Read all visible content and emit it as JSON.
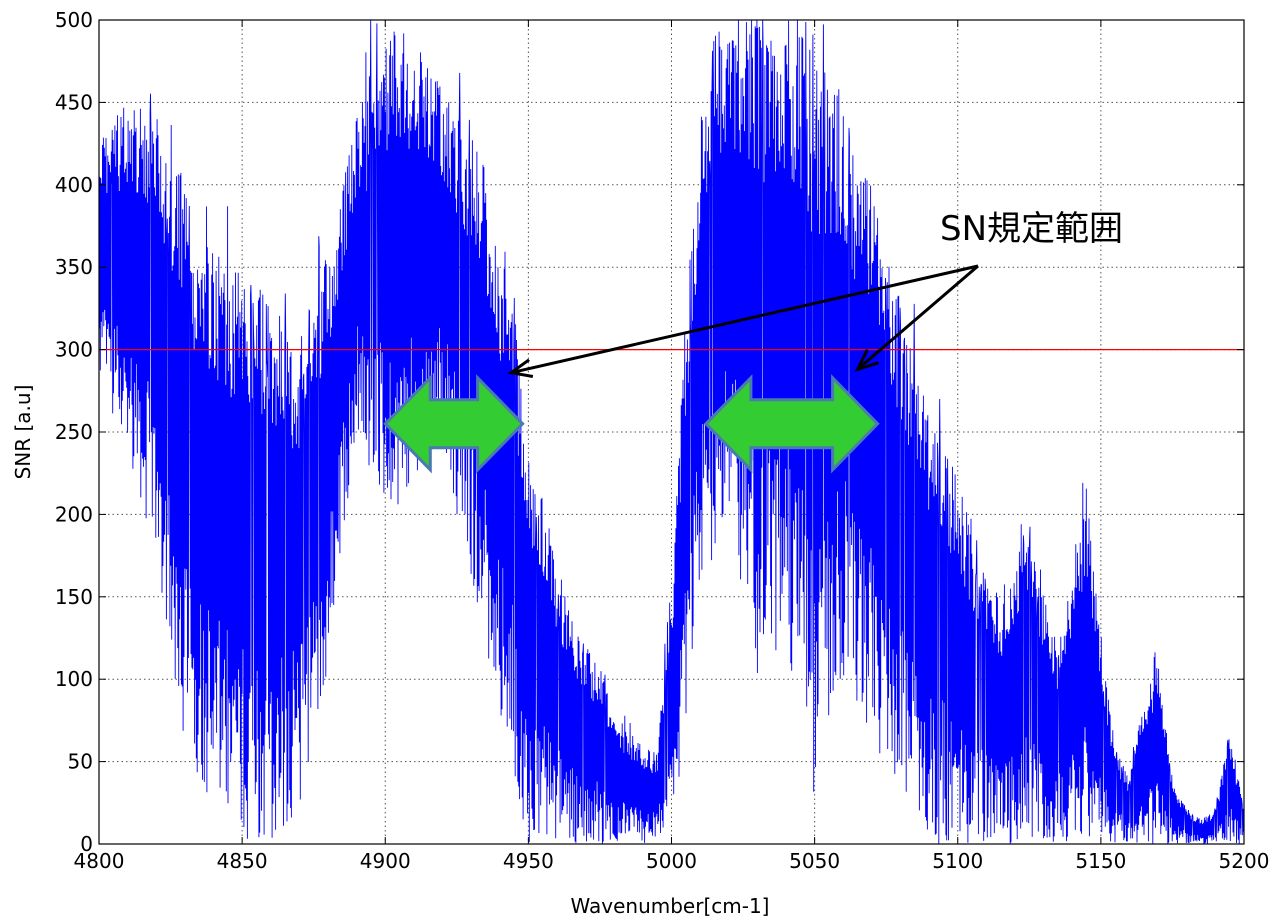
{
  "chart_data": {
    "type": "line",
    "xlabel": "Wavenumber[cm-1]",
    "ylabel": "SNR [a.u]",
    "xlim": [
      4800,
      5200
    ],
    "ylim": [
      0,
      500
    ],
    "x_ticks": [
      4800,
      4850,
      4900,
      4950,
      5000,
      5050,
      5100,
      5150,
      5200
    ],
    "y_ticks": [
      0,
      50,
      100,
      150,
      200,
      250,
      300,
      350,
      400,
      450,
      500
    ],
    "grid": true,
    "series": [
      {
        "color": "#0000ff",
        "envelope": [
          [
            4800,
            430
          ],
          [
            4805,
            440
          ],
          [
            4810,
            450
          ],
          [
            4815,
            455
          ],
          [
            4820,
            445
          ],
          [
            4825,
            430
          ],
          [
            4830,
            400
          ],
          [
            4835,
            370
          ],
          [
            4840,
            360
          ],
          [
            4845,
            355
          ],
          [
            4850,
            350
          ],
          [
            4855,
            340
          ],
          [
            4860,
            330
          ],
          [
            4865,
            320
          ],
          [
            4870,
            310
          ],
          [
            4875,
            330
          ],
          [
            4880,
            360
          ],
          [
            4885,
            400
          ],
          [
            4890,
            440
          ],
          [
            4895,
            470
          ],
          [
            4900,
            490
          ],
          [
            4905,
            495
          ],
          [
            4910,
            490
          ],
          [
            4915,
            470
          ],
          [
            4920,
            460
          ],
          [
            4925,
            440
          ],
          [
            4930,
            430
          ],
          [
            4935,
            410
          ],
          [
            4940,
            360
          ],
          [
            4945,
            330
          ],
          [
            4950,
            240
          ],
          [
            4955,
            210
          ],
          [
            4960,
            170
          ],
          [
            4965,
            140
          ],
          [
            4970,
            120
          ],
          [
            4975,
            110
          ],
          [
            4980,
            80
          ],
          [
            4985,
            70
          ],
          [
            4990,
            60
          ],
          [
            4995,
            55
          ],
          [
            5000,
            160
          ],
          [
            5005,
            320
          ],
          [
            5010,
            440
          ],
          [
            5015,
            490
          ],
          [
            5020,
            500
          ],
          [
            5025,
            500
          ],
          [
            5030,
            500
          ],
          [
            5035,
            500
          ],
          [
            5040,
            500
          ],
          [
            5045,
            500
          ],
          [
            5050,
            480
          ],
          [
            5055,
            470
          ],
          [
            5060,
            460
          ],
          [
            5065,
            420
          ],
          [
            5070,
            400
          ],
          [
            5075,
            360
          ],
          [
            5080,
            330
          ],
          [
            5085,
            300
          ],
          [
            5090,
            260
          ],
          [
            5095,
            250
          ],
          [
            5100,
            220
          ],
          [
            5105,
            190
          ],
          [
            5110,
            160
          ],
          [
            5115,
            150
          ],
          [
            5120,
            180
          ],
          [
            5125,
            200
          ],
          [
            5130,
            150
          ],
          [
            5135,
            120
          ],
          [
            5140,
            170
          ],
          [
            5145,
            220
          ],
          [
            5150,
            120
          ],
          [
            5155,
            60
          ],
          [
            5160,
            40
          ],
          [
            5165,
            90
          ],
          [
            5170,
            110
          ],
          [
            5175,
            40
          ],
          [
            5180,
            20
          ],
          [
            5185,
            15
          ],
          [
            5190,
            20
          ],
          [
            5195,
            70
          ],
          [
            5200,
            20
          ]
        ],
        "floor": [
          [
            4800,
            280
          ],
          [
            4810,
            240
          ],
          [
            4820,
            170
          ],
          [
            4830,
            60
          ],
          [
            4840,
            20
          ],
          [
            4850,
            0
          ],
          [
            4860,
            0
          ],
          [
            4870,
            20
          ],
          [
            4880,
            100
          ],
          [
            4890,
            250
          ],
          [
            4900,
            200
          ],
          [
            4910,
            210
          ],
          [
            4920,
            240
          ],
          [
            4930,
            160
          ],
          [
            4940,
            80
          ],
          [
            4950,
            0
          ],
          [
            4960,
            0
          ],
          [
            4970,
            0
          ],
          [
            4980,
            0
          ],
          [
            4990,
            0
          ],
          [
            5000,
            0
          ],
          [
            5010,
            150
          ],
          [
            5020,
            200
          ],
          [
            5030,
            100
          ],
          [
            5040,
            120
          ],
          [
            5050,
            20
          ],
          [
            5060,
            100
          ],
          [
            5070,
            60
          ],
          [
            5080,
            30
          ],
          [
            5090,
            0
          ],
          [
            5100,
            0
          ],
          [
            5110,
            0
          ],
          [
            5120,
            0
          ],
          [
            5130,
            0
          ],
          [
            5140,
            0
          ],
          [
            5150,
            0
          ],
          [
            5160,
            0
          ],
          [
            5170,
            0
          ],
          [
            5180,
            0
          ],
          [
            5190,
            0
          ],
          [
            5200,
            0
          ]
        ]
      }
    ],
    "reference_line": {
      "y": 300,
      "color": "#ff0000"
    },
    "annotation": {
      "text": "SN規定範囲",
      "arrow_color": "#000000",
      "arrow_targets": [
        [
          4944,
          286
        ],
        [
          5065,
          288
        ]
      ]
    },
    "ranges": [
      {
        "x_from": 4900,
        "x_to": 4948,
        "y": 255,
        "color": "#33cc33",
        "edge": "#4a7ab0"
      },
      {
        "x_from": 5012,
        "x_to": 5072,
        "y": 255,
        "color": "#33cc33",
        "edge": "#4a7ab0"
      }
    ]
  }
}
